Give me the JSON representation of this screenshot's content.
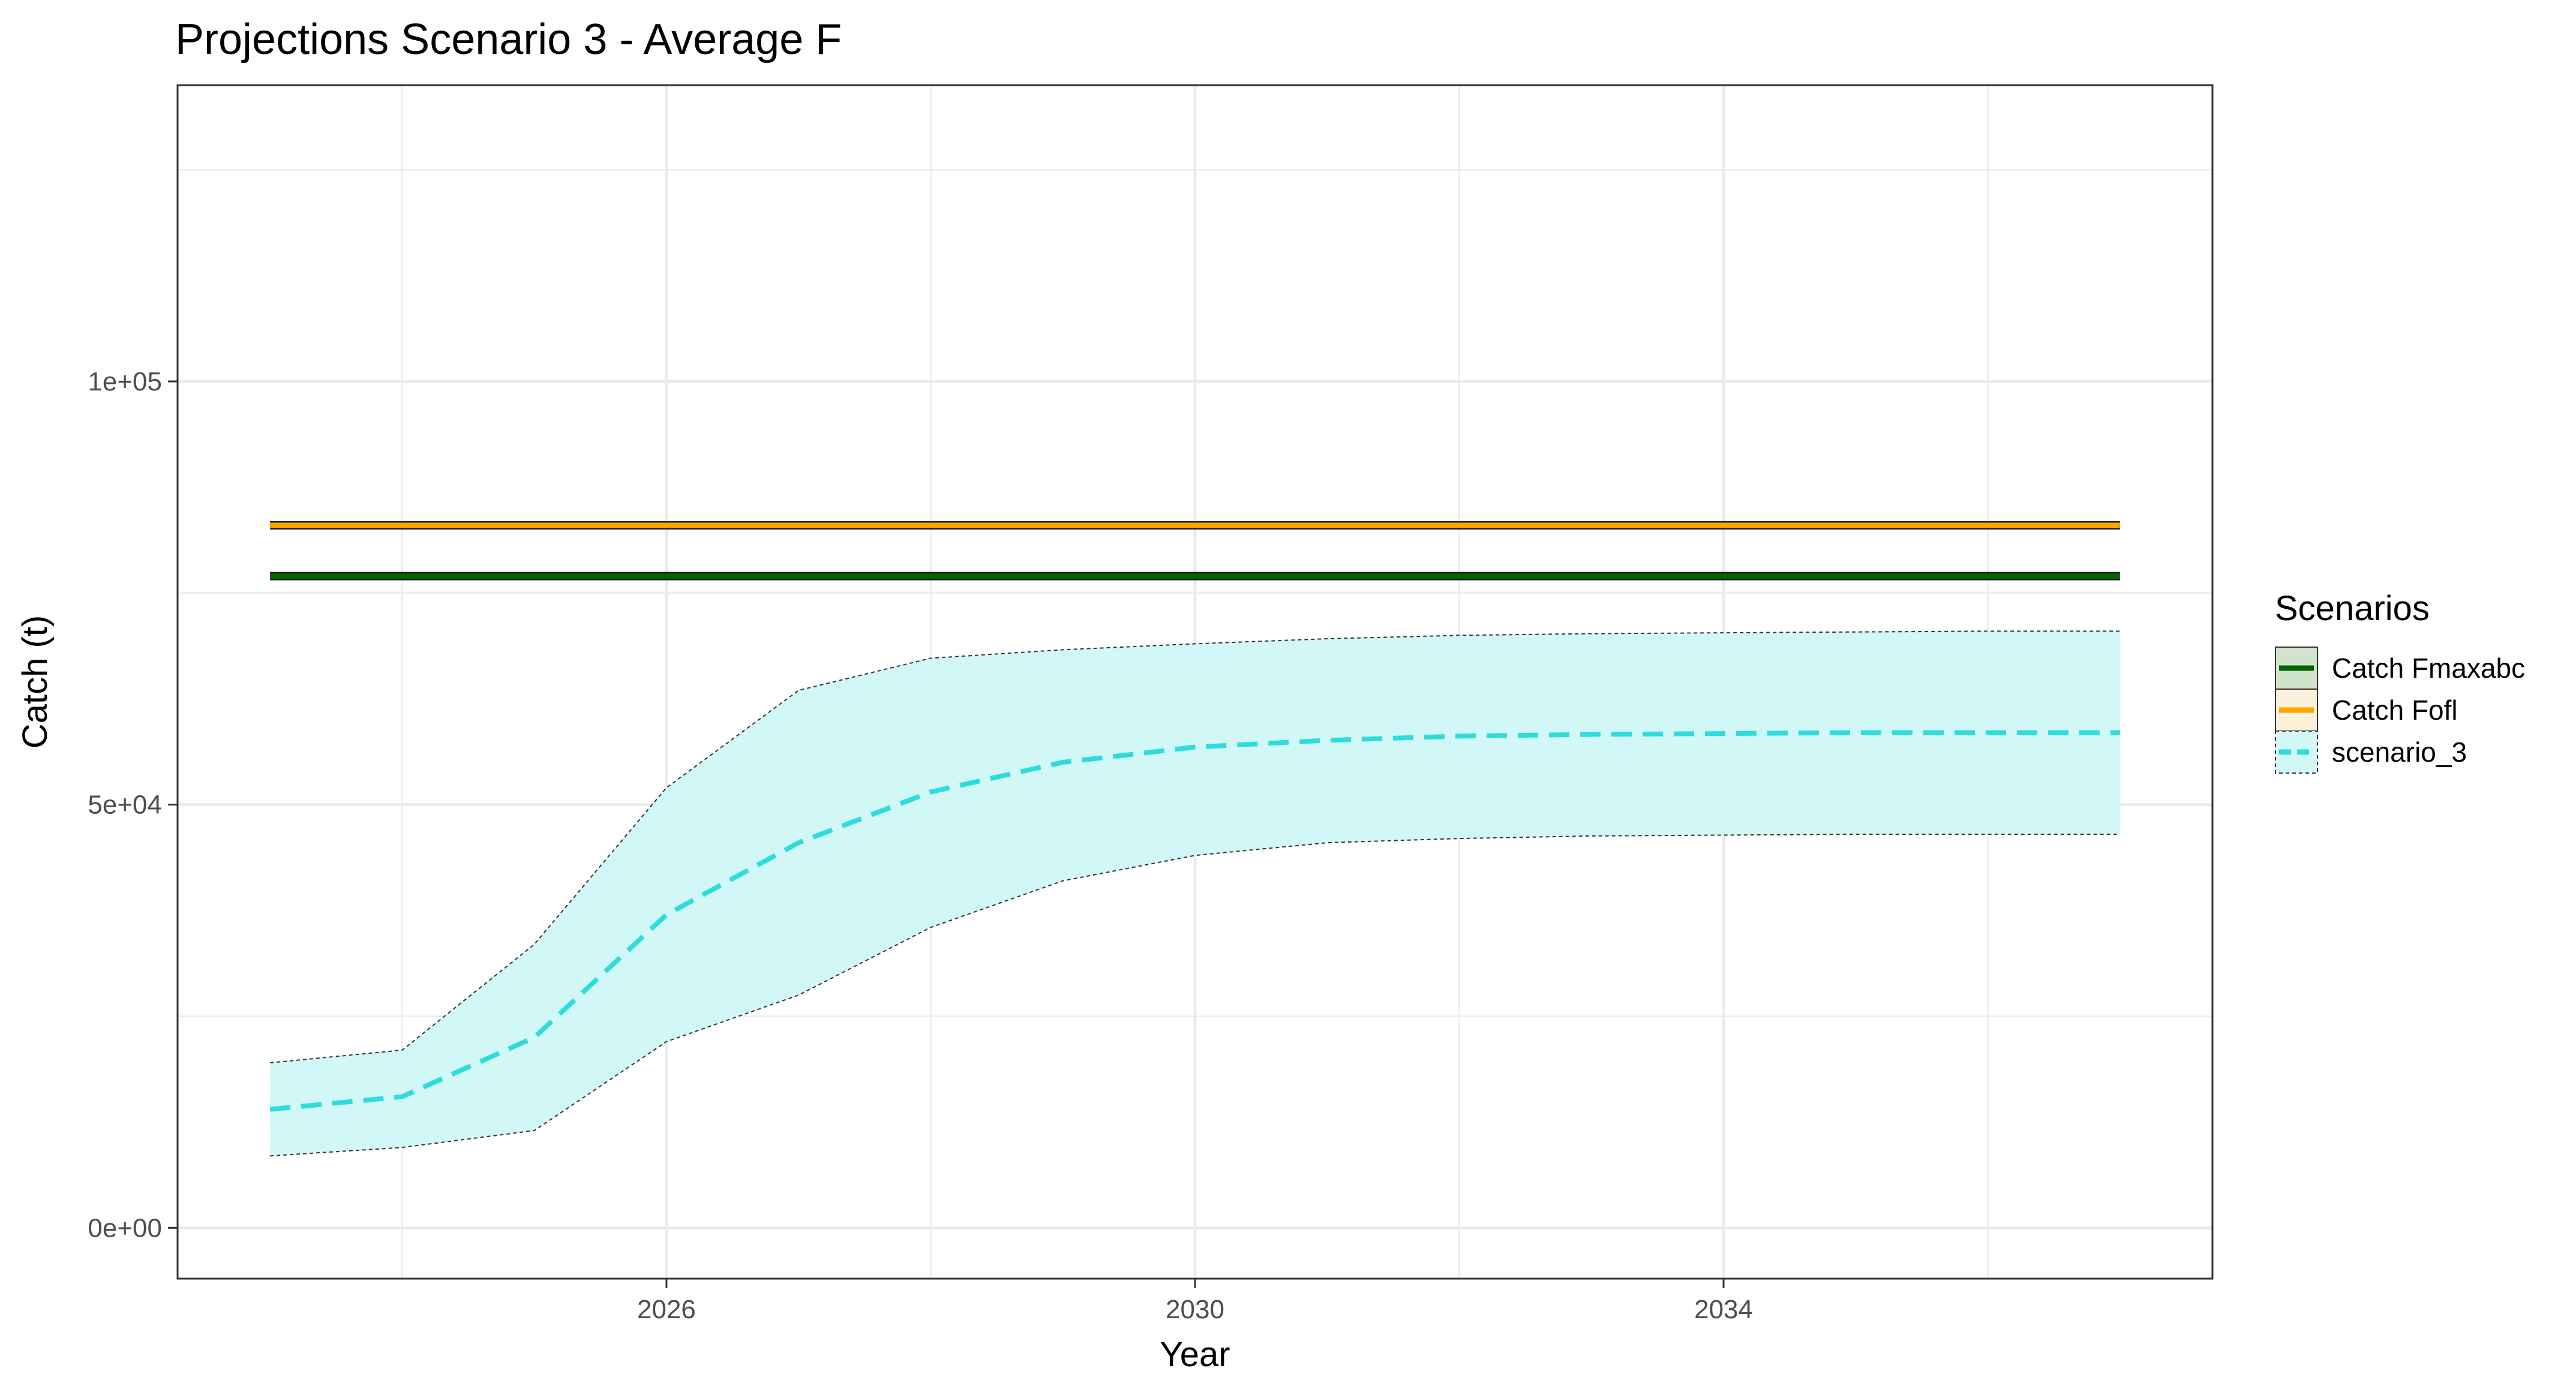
{
  "chart_data": {
    "type": "line",
    "title": "Projections Scenario 3 - Average F",
    "xlabel": "Year",
    "ylabel": "Catch (t)",
    "xlim": [
      2022.3,
      2037.7
    ],
    "ylim": [
      -6000,
      135000
    ],
    "x_ticks": [
      {
        "value": 2026,
        "label": "2026"
      },
      {
        "value": 2030,
        "label": "2030"
      },
      {
        "value": 2034,
        "label": "2034"
      }
    ],
    "x_minor_ticks": [
      2024,
      2028,
      2032,
      2036
    ],
    "y_ticks": [
      {
        "value": 0,
        "label": "0e+00"
      },
      {
        "value": 50000,
        "label": "5e+04"
      },
      {
        "value": 100000,
        "label": "1e+05"
      }
    ],
    "y_minor_ticks": [
      25000,
      75000,
      125000
    ],
    "grid": true,
    "legend": {
      "title": "Scenarios",
      "position": "right"
    },
    "series": [
      {
        "name": "Catch Fmaxabc",
        "style": "solid",
        "color": "#006400",
        "x": [
          2023,
          2037
        ],
        "values": [
          77000,
          77000
        ]
      },
      {
        "name": "Catch Fofl",
        "style": "solid",
        "color": "#FFA500",
        "x": [
          2023,
          2037
        ],
        "values": [
          83000,
          83000
        ]
      },
      {
        "name": "scenario_3",
        "style": "dashed",
        "color": "#2EDCDC",
        "fill": "#D2F7F7",
        "x": [
          2023,
          2024,
          2025,
          2026,
          2027,
          2028,
          2029,
          2030,
          2031,
          2032,
          2033,
          2034,
          2035,
          2036,
          2037
        ],
        "values": [
          14000,
          15500,
          22500,
          37000,
          45500,
          51500,
          55000,
          56800,
          57600,
          58100,
          58300,
          58400,
          58500,
          58500,
          58500
        ],
        "lower": [
          8500,
          9500,
          11500,
          22000,
          27500,
          35500,
          41000,
          44000,
          45500,
          46000,
          46300,
          46400,
          46500,
          46500,
          46500
        ],
        "upper": [
          19500,
          21000,
          33500,
          52000,
          63500,
          67300,
          68300,
          69000,
          69600,
          70000,
          70200,
          70300,
          70400,
          70500,
          70500
        ]
      }
    ]
  }
}
